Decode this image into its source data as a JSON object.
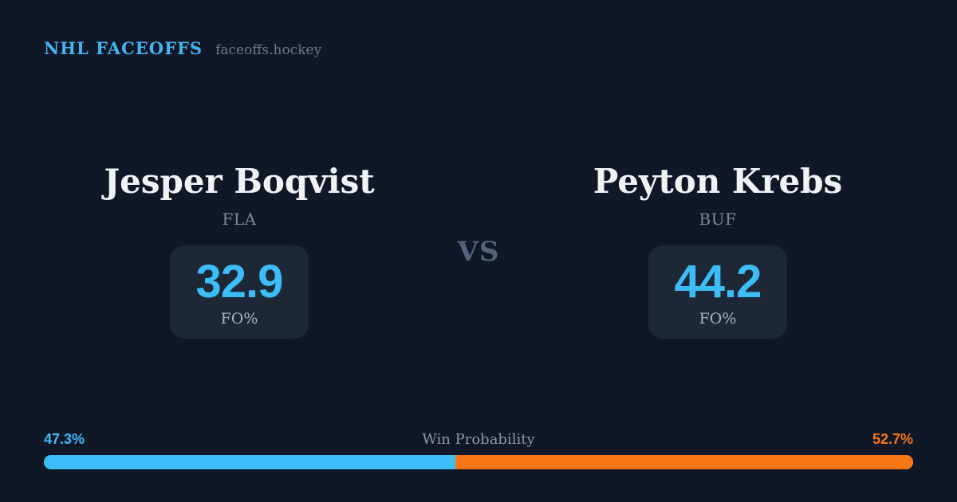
{
  "header": {
    "brand": "NHL FACEOFFS",
    "site": "faceoffs.hockey"
  },
  "matchup": {
    "vs_label": "VS",
    "players": [
      {
        "name": "Jesper Boqvist",
        "team": "FLA",
        "stat_value": "32.9",
        "stat_label": "FO%"
      },
      {
        "name": "Peyton Krebs",
        "team": "BUF",
        "stat_value": "44.2",
        "stat_label": "FO%"
      }
    ]
  },
  "win_probability": {
    "title": "Win Probability",
    "left_label": "47.3%",
    "right_label": "52.7%",
    "left_value": 47.3,
    "right_value": 52.7
  },
  "colors": {
    "background": "#101827",
    "card": "#1d2736",
    "accent_blue": "#3cbdf8",
    "accent_orange": "#f97616",
    "player_name": "#f0f2f6",
    "muted_text": "#7d8899"
  }
}
